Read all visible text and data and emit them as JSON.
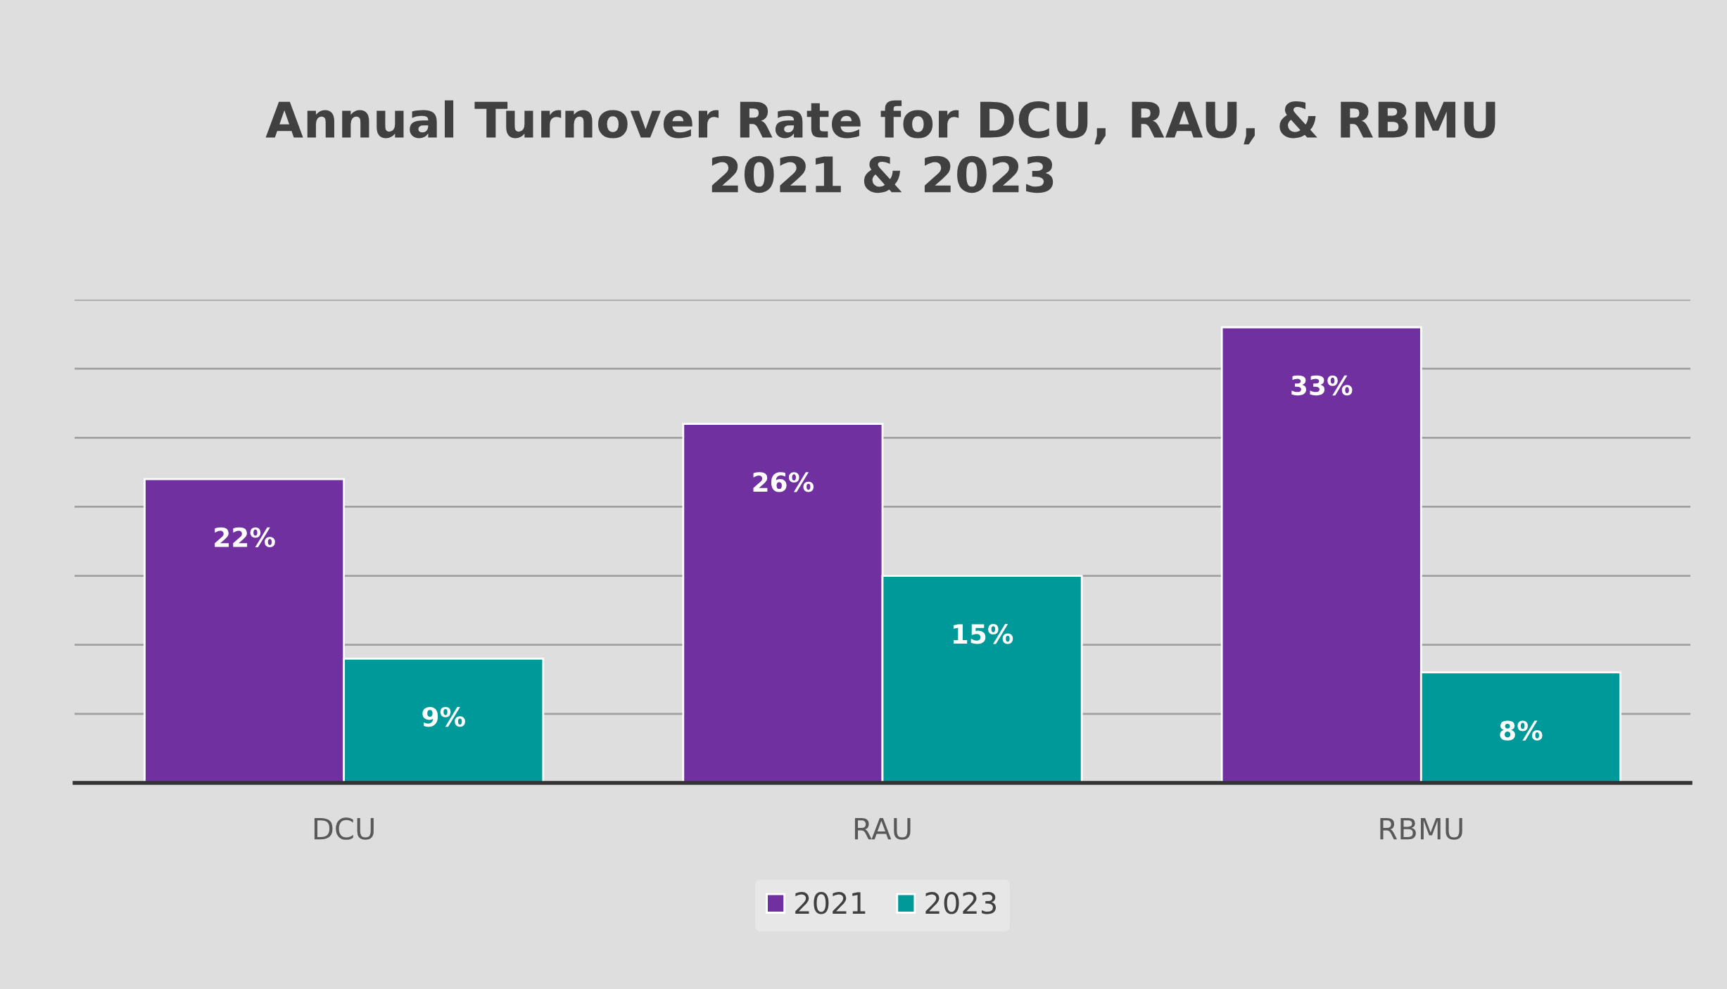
{
  "chart_data": {
    "type": "bar",
    "title": "Annual Turnover Rate for DCU, RAU, & RBMU\n2021 & 2023",
    "categories": [
      "DCU",
      "RAU",
      "RBMU"
    ],
    "series": [
      {
        "name": "2021",
        "color": "#7030a0",
        "values": [
          22,
          26,
          33
        ],
        "value_labels": [
          "22%",
          "26%",
          "33%"
        ]
      },
      {
        "name": "2023",
        "color": "#009999",
        "values": [
          9,
          15,
          8
        ],
        "value_labels": [
          "9%",
          "15%",
          "8%"
        ]
      }
    ],
    "ylim": [
      0,
      35
    ],
    "yticks": [
      {
        "value": 0,
        "label": null
      },
      {
        "value": 5,
        "label": null
      },
      {
        "value": 10,
        "label": null
      },
      {
        "value": 15,
        "label": null
      },
      {
        "value": 20,
        "label": null
      },
      {
        "value": 25,
        "label": null
      },
      {
        "value": 30,
        "label": null
      },
      {
        "value": 35,
        "label": null
      }
    ],
    "grid": "y",
    "legend": "bottom",
    "tick_labels": "x"
  }
}
